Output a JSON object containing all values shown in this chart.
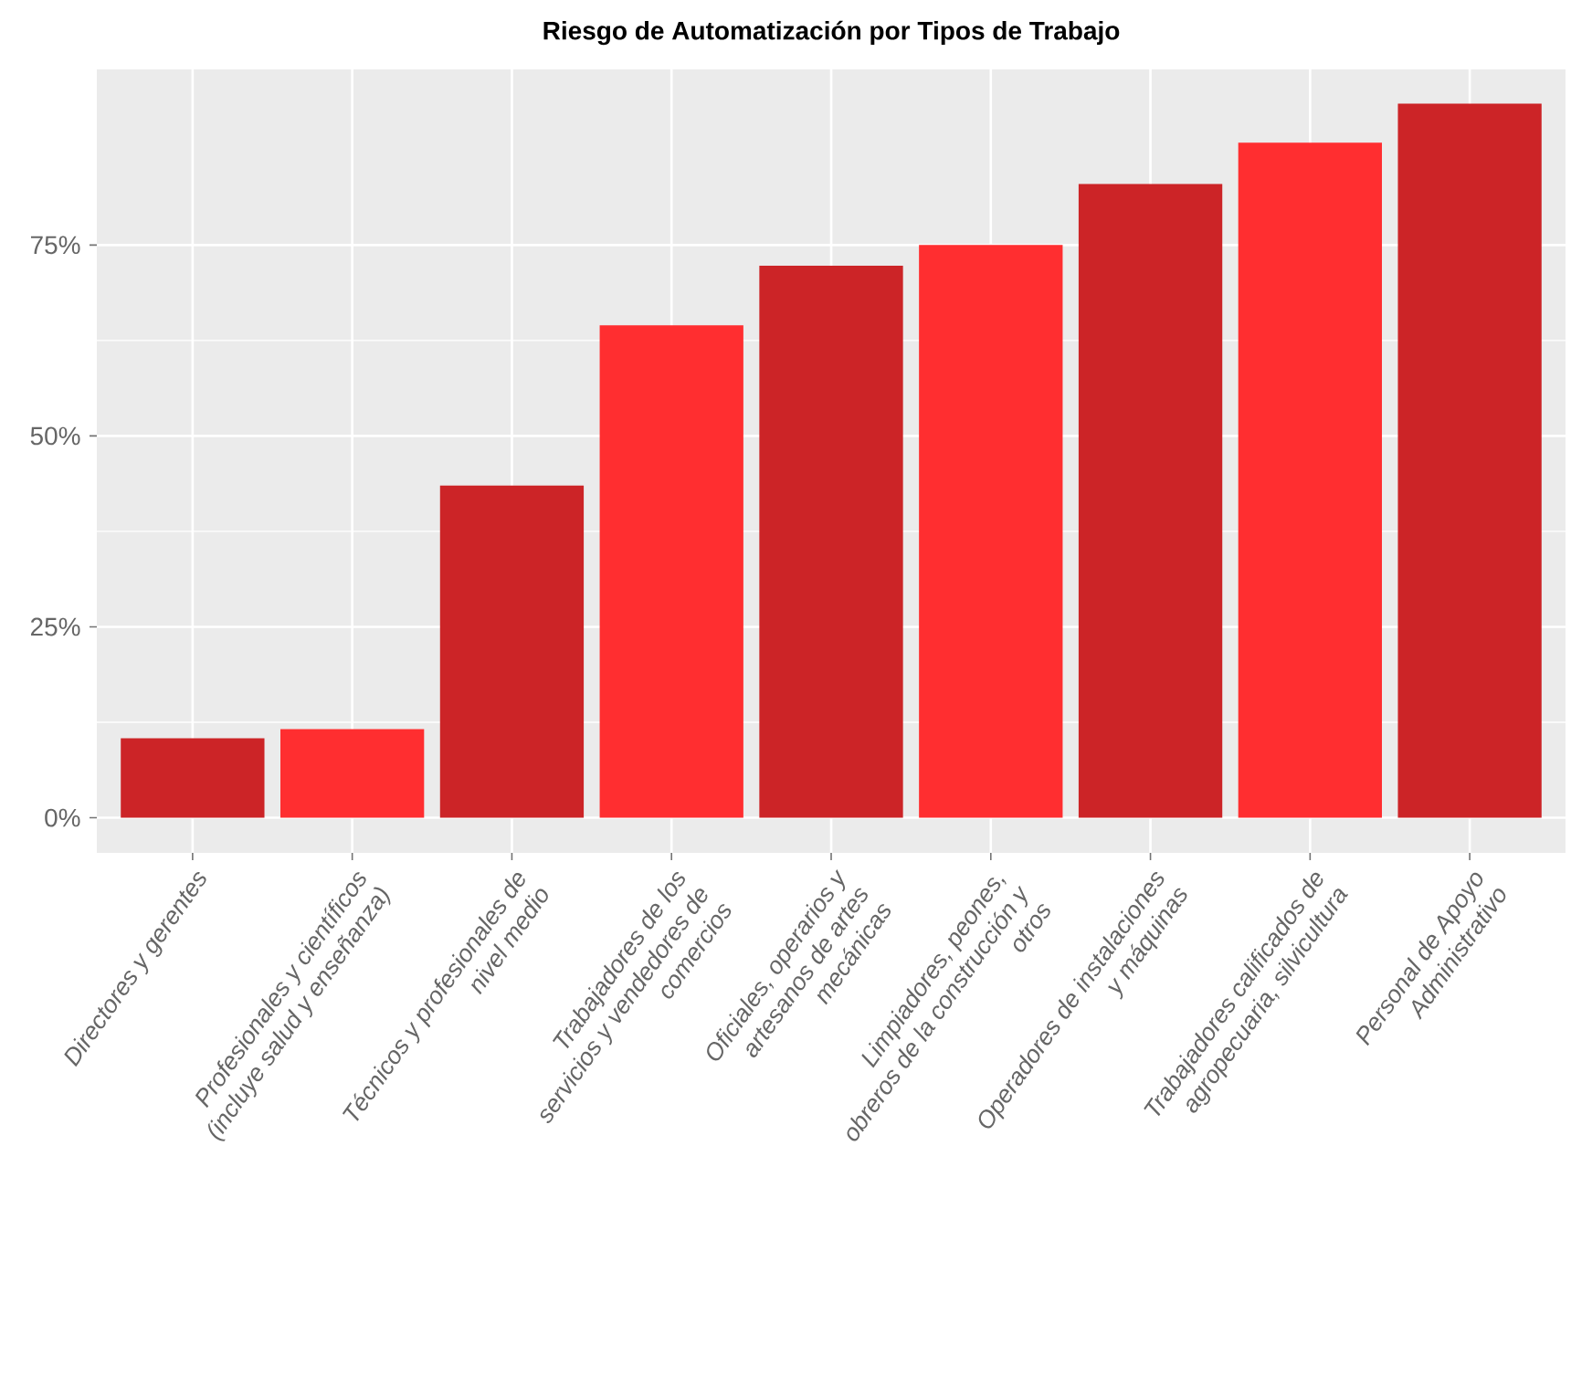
{
  "chart_data": {
    "type": "bar",
    "title": "Riesgo de Automatización por Tipos de Trabajo",
    "categories": [
      "Directores y gerentes",
      "Profesionales y científicos (incluye salud y enseñanza)",
      "Técnicos y profesionales de nivel medio",
      "Trabajadores de los servicios y vendedores de comercios",
      "Oficiales, operarios y artesanos de artes mecánicas",
      "Limpiadores, peones, obreros de la construcción y otros",
      "Operadores de instalaciones y máquinas",
      "Trabajadores calificados de agropecuaria, silvicultura",
      "Personal de Apoyo Administrativo"
    ],
    "values": [
      10.4,
      11.6,
      43.5,
      64.5,
      72.3,
      75.0,
      83.0,
      88.4,
      93.5
    ],
    "colors": [
      "#cc2427",
      "#ff2e30",
      "#cc2427",
      "#ff2e30",
      "#cc2427",
      "#ff2e30",
      "#cc2427",
      "#ff2e30",
      "#cc2427"
    ],
    "ylim": [
      -4.6,
      98
    ],
    "yticks": [
      {
        "value": 0,
        "label": "0%"
      },
      {
        "value": 25,
        "label": "25%"
      },
      {
        "value": 50,
        "label": "50%"
      },
      {
        "value": 75,
        "label": "75%"
      }
    ],
    "grid": true
  }
}
